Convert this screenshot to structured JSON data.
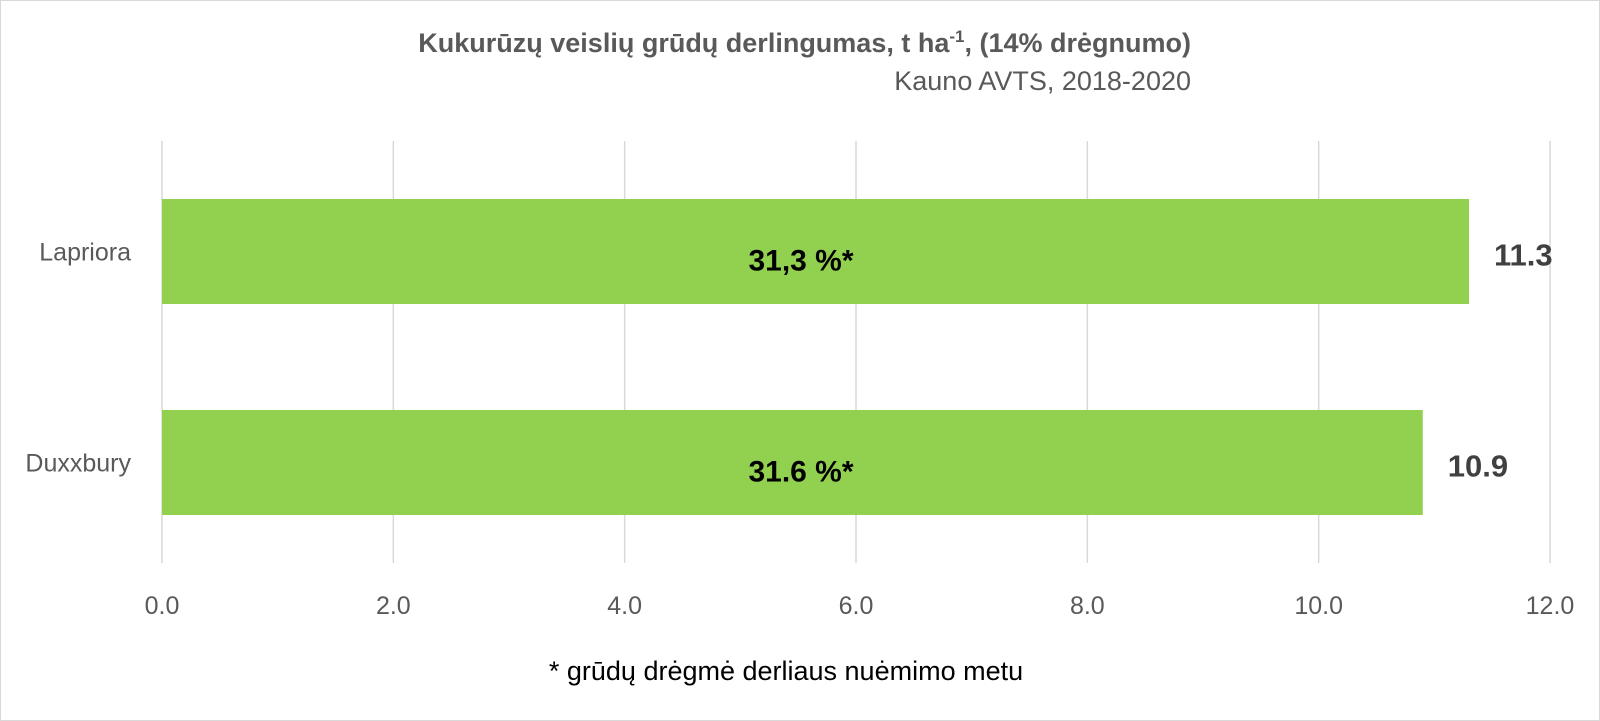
{
  "chart_data": {
    "type": "bar",
    "orientation": "horizontal",
    "title": "Kukurūzų veislių grūdų derlingumas, t ha",
    "title_superscript": "-1",
    "title_suffix": ", (14% drėgnumo)",
    "subtitle": "Kauno AVTS, 2018-2020",
    "categories": [
      "Lapriora",
      "Duxxbury"
    ],
    "values": [
      11.3,
      10.9
    ],
    "value_labels": [
      "11.3",
      "10.9"
    ],
    "bar_annotations": [
      "31,3 %*",
      "31.6 %*"
    ],
    "xlim": [
      0,
      12
    ],
    "x_ticks": [
      "0.0",
      "2.0",
      "4.0",
      "6.0",
      "8.0",
      "10.0",
      "12.0"
    ],
    "grid": "vertical",
    "bar_color": "#92d050",
    "footnote": "* grūdų drėgmė derliaus nuėmimo metu"
  }
}
